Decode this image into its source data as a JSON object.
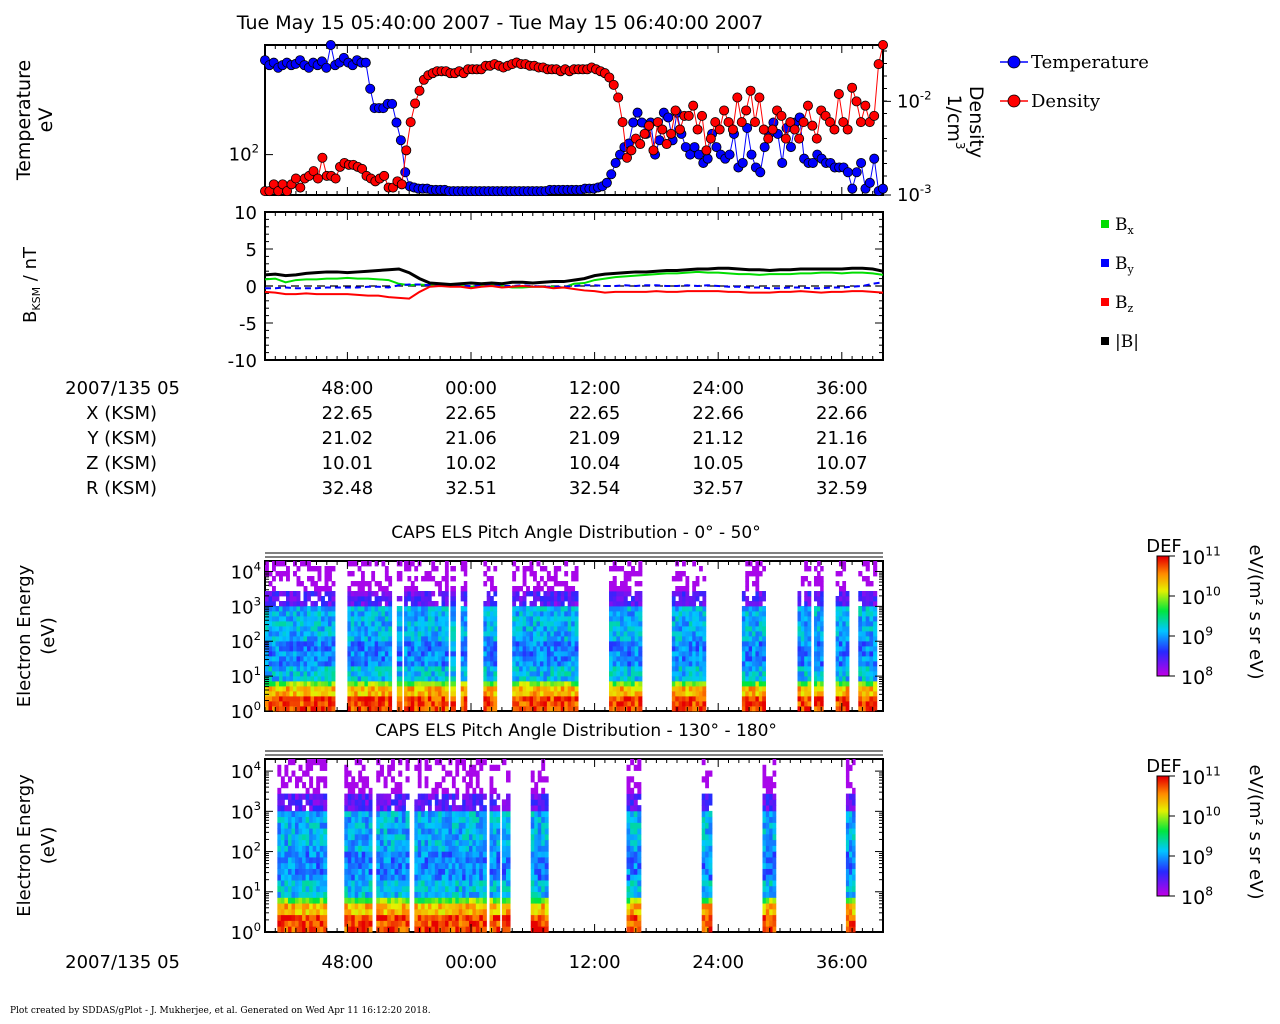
{
  "title": "Tue May 15 05:40:00 2007 - Tue May 15 06:40:00 2007",
  "footer": "Plot created by SDDAS/gPlot - J. Mukherjee, et al.  Generated on Wed Apr 11 16:12:20 2018.",
  "colors": {
    "temperature": "#0000ff",
    "density": "#ff0000",
    "bx": "#00dd00",
    "by": "#0000ff",
    "bz": "#ff0000",
    "btot": "#000000"
  },
  "time_axis": {
    "label": "2007/135 05",
    "ticks": [
      "48:00",
      "00:00",
      "12:00",
      "24:00",
      "36:00"
    ],
    "ephemeris": [
      {
        "label": "X (KSM)",
        "values": [
          "22.65",
          "22.65",
          "22.65",
          "22.66",
          "22.66"
        ]
      },
      {
        "label": "Y (KSM)",
        "values": [
          "21.02",
          "21.06",
          "21.09",
          "21.12",
          "21.16"
        ]
      },
      {
        "label": "Z (KSM)",
        "values": [
          "10.01",
          "10.02",
          "10.04",
          "10.05",
          "10.07"
        ]
      },
      {
        "label": "R (KSM)",
        "values": [
          "32.48",
          "32.51",
          "32.54",
          "32.57",
          "32.59"
        ]
      }
    ]
  },
  "chart_data": [
    {
      "type": "line",
      "panel": "plasma",
      "x_unit": "minutes after 2007/135 05:40",
      "xlim": [
        0,
        60
      ],
      "ylabel_left": [
        "Temperature",
        "eV"
      ],
      "ylabel_right": [
        "Density",
        "1/cm"
      ],
      "ylabel_right_exp": "3",
      "left_scale": "log",
      "right_scale": "log",
      "ylim_left": [
        60,
        400
      ],
      "ylim_right": [
        0.001,
        0.04
      ],
      "left_ticks": [
        {
          "value": 100,
          "base": "10",
          "exp": "2"
        }
      ],
      "right_ticks": [
        {
          "value": 0.01,
          "base": "10",
          "exp": "-2"
        },
        {
          "value": 0.001,
          "base": "10",
          "exp": "-3"
        }
      ],
      "legend": {
        "placement": "right",
        "entries": [
          "Temperature",
          "Density"
        ]
      },
      "series": [
        {
          "name": "Temperature",
          "color": "#0000ff",
          "values": [
            330,
            310,
            320,
            300,
            310,
            320,
            310,
            315,
            330,
            310,
            300,
            320,
            310,
            325,
            300,
            400,
            310,
            320,
            340,
            320,
            310,
            330,
            320,
            320,
            230,
            180,
            180,
            180,
            190,
            190,
            150,
            120,
            80,
            67,
            66,
            65,
            65,
            65,
            64,
            64,
            64,
            64,
            63,
            63,
            63,
            63,
            63,
            63,
            63,
            63,
            63,
            63,
            63,
            63,
            63,
            63,
            63,
            63,
            63,
            63,
            63,
            63,
            63,
            63,
            63,
            64,
            64,
            64,
            64,
            64,
            64,
            64,
            64,
            65,
            65,
            65,
            66,
            67,
            70,
            78,
            90,
            100,
            110,
            115,
            150,
            170,
            150,
            130,
            150,
            100,
            120,
            170,
            160,
            120,
            170,
            130,
            110,
            100,
            110,
            100,
            90,
            95,
            130,
            110,
            100,
            95,
            100,
            130,
            85,
            90,
            140,
            100,
            85,
            80,
            110,
            130,
            150,
            130,
            90,
            140,
            110,
            150,
            160,
            95,
            90,
            90,
            100,
            95,
            90,
            90,
            85,
            85,
            85,
            80,
            65,
            80,
            90,
            65,
            70,
            95,
            63,
            65
          ]
        },
        {
          "name": "Density",
          "color": "#ff0000",
          "values": [
            0.0011,
            0.0011,
            0.0013,
            0.0011,
            0.0013,
            0.0011,
            0.0013,
            0.0015,
            0.0012,
            0.0015,
            0.0016,
            0.0018,
            0.0015,
            0.0025,
            0.0016,
            0.0016,
            0.0015,
            0.002,
            0.0022,
            0.0021,
            0.0021,
            0.002,
            0.0019,
            0.0016,
            0.0015,
            0.0014,
            0.0015,
            0.0016,
            0.0012,
            0.0012,
            0.0014,
            0.0013,
            0.003,
            0.006,
            0.0095,
            0.013,
            0.017,
            0.019,
            0.02,
            0.021,
            0.021,
            0.021,
            0.02,
            0.02,
            0.021,
            0.02,
            0.022,
            0.022,
            0.022,
            0.022,
            0.024,
            0.024,
            0.025,
            0.024,
            0.023,
            0.024,
            0.025,
            0.026,
            0.025,
            0.025,
            0.024,
            0.024,
            0.023,
            0.023,
            0.022,
            0.022,
            0.022,
            0.021,
            0.022,
            0.021,
            0.022,
            0.022,
            0.022,
            0.022,
            0.023,
            0.022,
            0.021,
            0.02,
            0.018,
            0.015,
            0.011,
            0.006,
            0.0025,
            0.003,
            0.004,
            0.0035,
            0.0045,
            0.0055,
            0.003,
            0.006,
            0.005,
            0.0035,
            0.0045,
            0.008,
            0.005,
            0.007,
            0.007,
            0.009,
            0.005,
            0.007,
            0.003,
            0.004,
            0.006,
            0.005,
            0.008,
            0.006,
            0.005,
            0.011,
            0.006,
            0.008,
            0.013,
            0.006,
            0.011,
            0.005,
            0.004,
            0.005,
            0.008,
            0.007,
            0.004,
            0.006,
            0.005,
            0.004,
            0.006,
            0.009,
            0.0055,
            0.004,
            0.008,
            0.007,
            0.006,
            0.005,
            0.012,
            0.006,
            0.005,
            0.014,
            0.01,
            0.006,
            0.009,
            0.006,
            0.007,
            0.025,
            0.04
          ]
        }
      ]
    },
    {
      "type": "line",
      "panel": "magnetic_field",
      "x_unit": "minutes after 2007/135 05:40",
      "xlim": [
        0,
        60
      ],
      "ylabel": "B",
      "ylabel_sub": "KSM",
      "ylabel_rest": " / nT",
      "ylim": [
        -10,
        10
      ],
      "yticks": [
        10,
        5,
        0,
        -5,
        -10
      ],
      "legend": {
        "placement": "right",
        "entries": [
          {
            "base": "B",
            "sub": "x"
          },
          {
            "base": "B",
            "sub": "y"
          },
          {
            "base": "B",
            "sub": "z"
          },
          {
            "base": "|B|",
            "sub": ""
          }
        ]
      },
      "series": [
        {
          "name": "Bx",
          "color": "#00dd00",
          "values": [
            0.9,
            1.0,
            0.5,
            0.8,
            0.9,
            0.9,
            1.0,
            1.0,
            1.1,
            1.0,
            1.0,
            0.9,
            0.8,
            0.3,
            0.1,
            0.2,
            0.1,
            0.0,
            0.1,
            0.0,
            -0.1,
            0.0,
            0.1,
            0.0,
            -0.2,
            -0.2,
            -0.1,
            -0.1,
            -0.1,
            -0.2,
            0.3,
            0.4,
            0.8,
            1.0,
            1.2,
            1.3,
            1.4,
            1.5,
            1.6,
            1.7,
            1.7,
            1.8,
            1.9,
            1.8,
            1.8,
            1.7,
            1.6,
            1.6,
            1.5,
            1.6,
            1.6,
            1.6,
            1.7,
            1.7,
            1.8,
            1.8,
            1.7,
            1.8,
            1.8,
            1.7,
            1.5
          ]
        },
        {
          "name": "By",
          "color": "#0000ff",
          "values": [
            -0.3,
            -0.3,
            -0.2,
            -0.3,
            -0.3,
            -0.3,
            -0.2,
            -0.2,
            -0.2,
            -0.2,
            -0.1,
            -0.1,
            -0.2,
            0.1,
            0.2,
            0.2,
            0.1,
            0.0,
            0.1,
            0.0,
            0.0,
            0.1,
            0.1,
            0.0,
            0.0,
            0.1,
            0.0,
            -0.1,
            -0.1,
            -0.1,
            0.0,
            0.1,
            0.1,
            0.0,
            0.0,
            0.1,
            0.0,
            0.1,
            0.1,
            0.0,
            0.0,
            0.1,
            0.0,
            0.1,
            0.0,
            -0.1,
            -0.1,
            -0.2,
            -0.2,
            -0.3,
            -0.3,
            -0.2,
            -0.2,
            -0.3,
            -0.3,
            -0.2,
            -0.2,
            -0.1,
            0.0,
            0.3,
            0.5
          ]
        },
        {
          "name": "Bz",
          "color": "#ff0000",
          "values": [
            -0.8,
            -0.9,
            -1.1,
            -1.1,
            -1.0,
            -1.1,
            -1.1,
            -1.1,
            -1.1,
            -1.2,
            -1.3,
            -1.3,
            -1.5,
            -1.6,
            -1.7,
            -0.8,
            -0.1,
            0.0,
            -0.1,
            -0.1,
            -0.3,
            -0.1,
            0.0,
            -0.2,
            -0.1,
            0.0,
            -0.1,
            -0.1,
            -0.3,
            -0.2,
            -0.4,
            -0.6,
            -0.7,
            -0.9,
            -0.8,
            -0.8,
            -0.8,
            -0.8,
            -0.7,
            -0.8,
            -0.8,
            -0.7,
            -0.7,
            -0.7,
            -0.7,
            -0.8,
            -0.8,
            -0.9,
            -0.9,
            -0.9,
            -0.8,
            -0.8,
            -0.7,
            -0.8,
            -0.9,
            -0.8,
            -0.8,
            -0.7,
            -0.7,
            -0.8,
            -0.9
          ]
        },
        {
          "name": "|B|",
          "color": "#000000",
          "values": [
            1.5,
            1.6,
            1.4,
            1.5,
            1.7,
            1.8,
            1.9,
            1.9,
            1.8,
            1.9,
            2.0,
            2.1,
            2.2,
            2.3,
            1.8,
            1.0,
            0.4,
            0.3,
            0.2,
            0.3,
            0.4,
            0.3,
            0.4,
            0.3,
            0.5,
            0.5,
            0.4,
            0.5,
            0.6,
            0.6,
            0.8,
            1.0,
            1.4,
            1.6,
            1.7,
            1.8,
            1.9,
            1.9,
            2.0,
            2.1,
            2.1,
            2.2,
            2.3,
            2.3,
            2.4,
            2.4,
            2.3,
            2.2,
            2.2,
            2.1,
            2.2,
            2.2,
            2.3,
            2.3,
            2.3,
            2.3,
            2.3,
            2.4,
            2.4,
            2.3,
            2.0
          ]
        }
      ]
    },
    {
      "type": "heatmap",
      "panel": "els_0_50",
      "title": "CAPS ELS Pitch Angle Distribution - 0° - 50°",
      "ylabel": [
        "Electron Energy",
        "(eV)"
      ],
      "y_scale": "log",
      "ylim": [
        1,
        20000
      ],
      "yticks": [
        {
          "base": "10",
          "exp": "0"
        },
        {
          "base": "10",
          "exp": "1"
        },
        {
          "base": "10",
          "exp": "2"
        },
        {
          "base": "10",
          "exp": "3"
        },
        {
          "base": "10",
          "exp": "4"
        }
      ],
      "colorbar": {
        "title": "DEF",
        "units": "eV/(m² s sr eV)",
        "scale": "log",
        "range": [
          100000000.0,
          100000000000.0
        ],
        "ticks": [
          {
            "base": "10",
            "exp": "11"
          },
          {
            "base": "10",
            "exp": "10"
          },
          {
            "base": "10",
            "exp": "9"
          },
          {
            "base": "10",
            "exp": "8"
          }
        ]
      },
      "data_intervals_min": [
        [
          0.0,
          6.8
        ],
        [
          8.0,
          12.3
        ],
        [
          12.8,
          13.3
        ],
        [
          13.5,
          17.8
        ],
        [
          18.0,
          18.5
        ],
        [
          19.0,
          19.6
        ],
        [
          21.2,
          22.5
        ],
        [
          24.0,
          30.4
        ],
        [
          33.4,
          36.6
        ],
        [
          39.5,
          42.8
        ],
        [
          46.3,
          48.6
        ],
        [
          51.7,
          53.0
        ],
        [
          53.3,
          54.2
        ],
        [
          55.4,
          56.7
        ],
        [
          57.6,
          59.4
        ]
      ]
    },
    {
      "type": "heatmap",
      "panel": "els_130_180",
      "title": "CAPS ELS Pitch Angle Distribution - 130° - 180°",
      "ylabel": [
        "Electron Energy",
        "(eV)"
      ],
      "y_scale": "log",
      "ylim": [
        1,
        20000
      ],
      "yticks": [
        {
          "base": "10",
          "exp": "0"
        },
        {
          "base": "10",
          "exp": "1"
        },
        {
          "base": "10",
          "exp": "2"
        },
        {
          "base": "10",
          "exp": "3"
        },
        {
          "base": "10",
          "exp": "4"
        }
      ],
      "colorbar": {
        "title": "DEF",
        "units": "eV/(m² s sr eV)",
        "scale": "log",
        "range": [
          100000000.0,
          100000000000.0
        ],
        "ticks": [
          {
            "base": "10",
            "exp": "11"
          },
          {
            "base": "10",
            "exp": "10"
          },
          {
            "base": "10",
            "exp": "9"
          },
          {
            "base": "10",
            "exp": "8"
          }
        ]
      },
      "data_intervals_min": [
        [
          1.2,
          6.0
        ],
        [
          7.7,
          10.4
        ],
        [
          10.8,
          14.0
        ],
        [
          14.5,
          20.8
        ],
        [
          20.8,
          21.5
        ],
        [
          21.8,
          22.8
        ],
        [
          23.0,
          23.8
        ],
        [
          25.8,
          27.5
        ],
        [
          35.1,
          36.5
        ],
        [
          42.4,
          43.4
        ],
        [
          48.3,
          49.6
        ],
        [
          56.4,
          57.3
        ]
      ]
    }
  ]
}
